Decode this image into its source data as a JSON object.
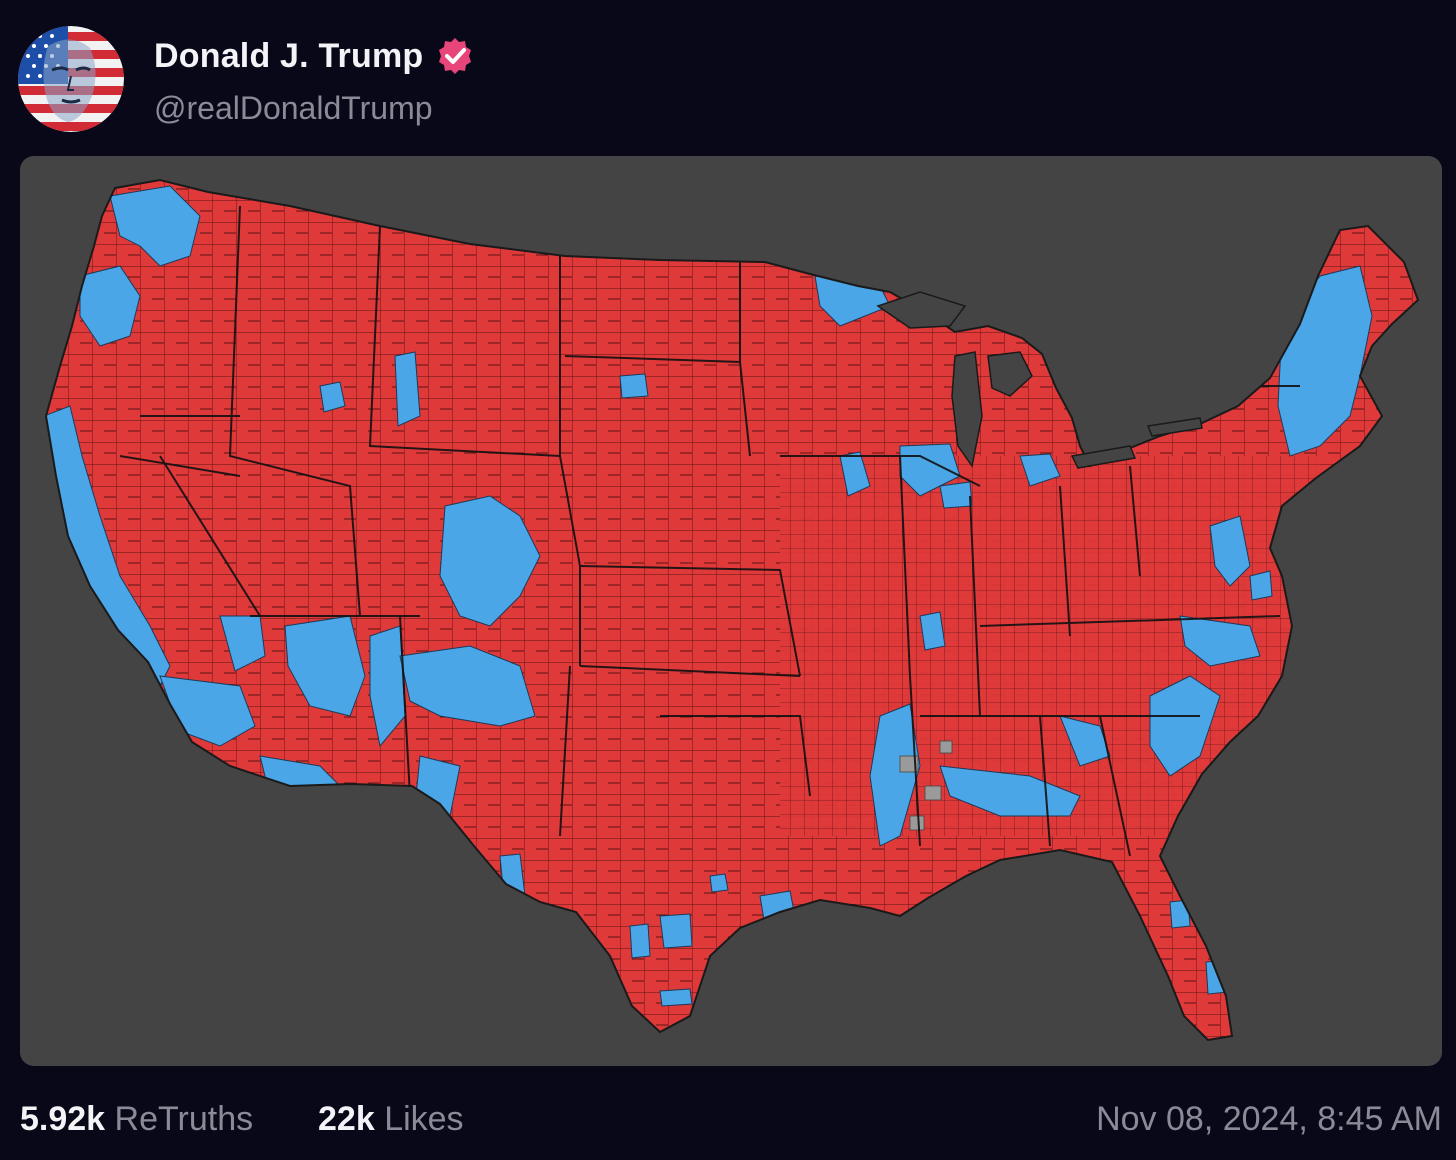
{
  "post": {
    "author": {
      "display_name": "Donald J. Trump",
      "handle": "@realDonaldTrump",
      "verified": true,
      "avatar_icon": "flag-portrait-avatar"
    },
    "stats": {
      "retruths_count": "5.92k",
      "retruths_label": "ReTruths",
      "likes_count": "22k",
      "likes_label": "Likes"
    },
    "timestamp": "Nov 08, 2024, 8:45 AM"
  },
  "media": {
    "description_icon": "us-county-election-map",
    "colors": {
      "background": "#444444",
      "republican": "#e0393a",
      "democrat": "#4aa6e6",
      "tie_or_no_data": "#9a9a9a",
      "borders": "#111111"
    }
  },
  "theme": {
    "page_background": "#090818",
    "primary_text": "#f4f4f8",
    "secondary_text": "#8b8b98",
    "verified_badge": "#e8457a"
  }
}
